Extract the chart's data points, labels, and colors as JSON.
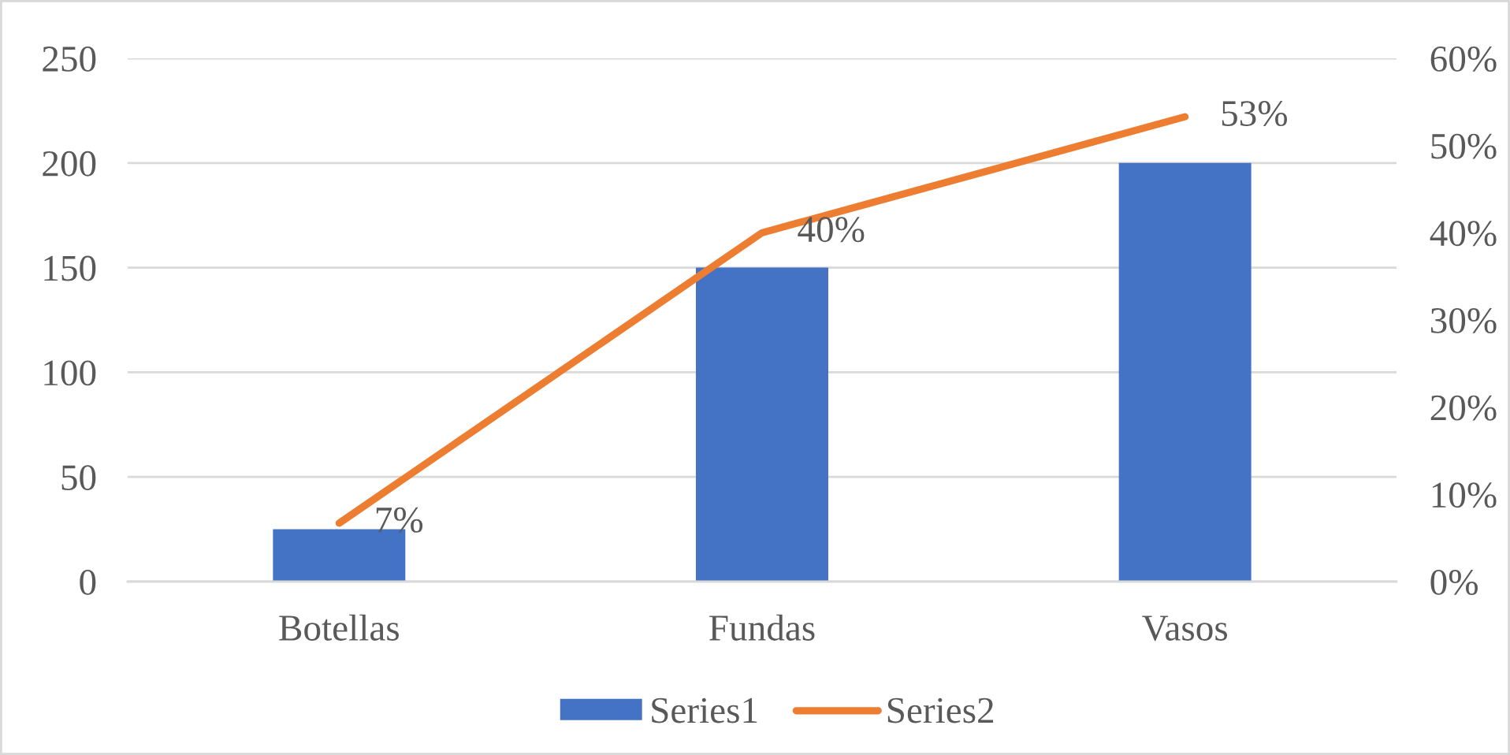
{
  "chart_data": {
    "type": "bar",
    "categories": [
      "Botellas",
      "Fundas",
      "Vasos"
    ],
    "series": [
      {
        "name": "Series1",
        "color": "#4472c4",
        "values": [
          25,
          150,
          200
        ]
      },
      {
        "name": "Series2",
        "type": "line",
        "axis": "y2",
        "color": "#ed7d31",
        "values": [
          6.7,
          40,
          53.3
        ],
        "value_labels": [
          "7%",
          "40%",
          "53%"
        ]
      }
    ],
    "ylim": [
      0,
      250
    ],
    "yticks": [
      0,
      50,
      100,
      150,
      200,
      250
    ],
    "y2lim": [
      0,
      60
    ],
    "y2ticks": [
      {
        "value": 0,
        "label": "0%"
      },
      {
        "value": 10,
        "label": "10%"
      },
      {
        "value": 20,
        "label": "20%"
      },
      {
        "value": 30,
        "label": "30%"
      },
      {
        "value": 40,
        "label": "40%"
      },
      {
        "value": 50,
        "label": "50%"
      },
      {
        "value": 60,
        "label": "60%"
      }
    ],
    "grid": "y",
    "legend": "bottom"
  }
}
